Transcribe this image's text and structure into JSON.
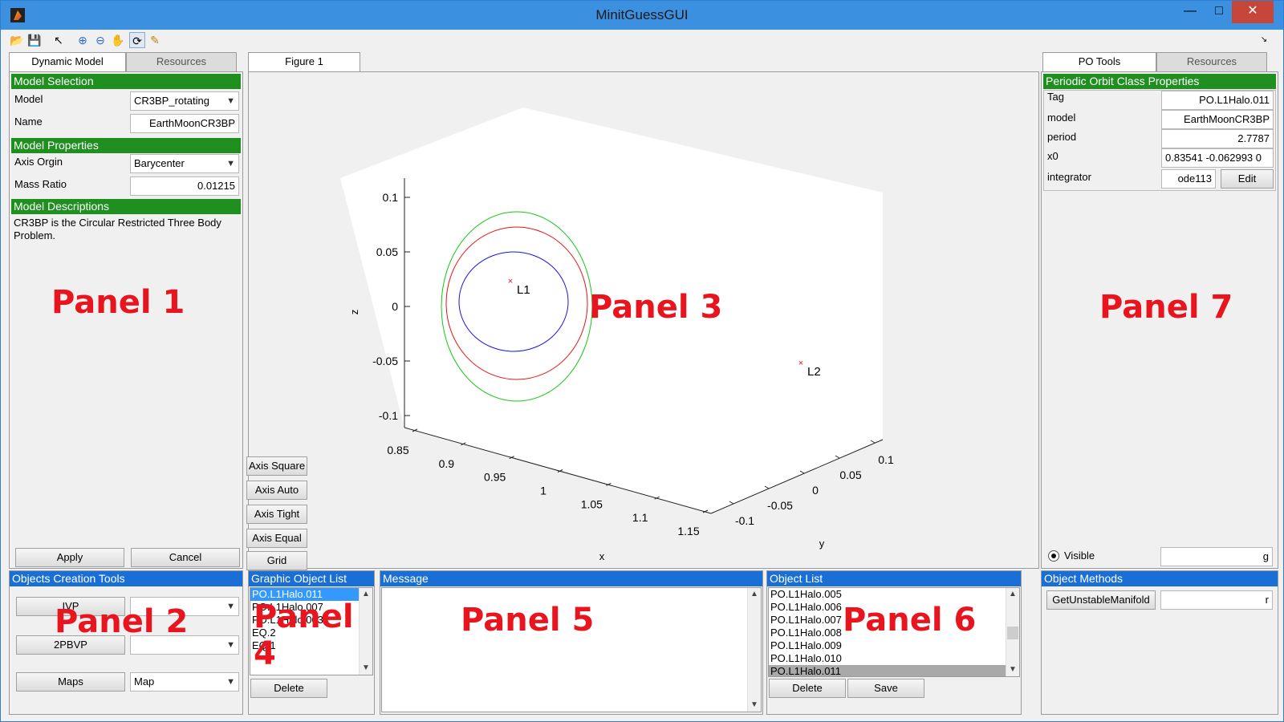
{
  "window": {
    "title": "MinitGuessGUI"
  },
  "tabs": {
    "left": [
      "Dynamic Model",
      "Resources"
    ],
    "middle": "Figure 1",
    "right": [
      "PO Tools",
      "Resources"
    ]
  },
  "panel1": {
    "model_selection_header": "Model Selection",
    "model_label": "Model",
    "model_value": "CR3BP_rotating",
    "name_label": "Name",
    "name_value": "EarthMoonCR3BP",
    "model_properties_header": "Model Properties",
    "axis_origin_label": "Axis Orgin",
    "axis_origin_value": "Barycenter",
    "mass_ratio_label": "Mass Ratio",
    "mass_ratio_value": "0.01215",
    "model_descriptions_header": "Model Descriptions",
    "description_line1": "CR3BP is the Circular Restricted Three Body",
    "description_line2": "Problem.",
    "apply": "Apply",
    "cancel": "Cancel",
    "overlay": "Panel 1"
  },
  "panel2": {
    "header": "Objects Creation Tools",
    "ivp": "IVP",
    "ivp_select": "",
    "twopbvp": "2PBVP",
    "twopbvp_select": "",
    "maps": "Maps",
    "maps_select": "Map",
    "overlay": "Panel 2"
  },
  "panel3": {
    "axis_buttons": [
      "Axis Square",
      "Axis Auto",
      "Axis Tight",
      "Axis Equal",
      "Grid"
    ],
    "overlay": "Panel 3"
  },
  "chart_data": {
    "type": "line",
    "title": "",
    "xlabel": "x",
    "ylabel": "y",
    "zlabel": "z",
    "x_ticks": [
      "0.85",
      "0.9",
      "0.95",
      "1",
      "1.05",
      "1.1",
      "1.15"
    ],
    "y_ticks": [
      "-0.1",
      "-0.05",
      "0",
      "0.05",
      "0.1"
    ],
    "z_ticks": [
      "0.1",
      "0.05",
      "0",
      "-0.05",
      "-0.1"
    ],
    "points": [
      {
        "label": "L1",
        "x": 0.8369,
        "y": 0,
        "z": 0
      },
      {
        "label": "L2",
        "x": 1.1557,
        "y": 0,
        "z": 0
      }
    ],
    "series": [
      {
        "color": "#1414e6"
      },
      {
        "color": "#e61414"
      },
      {
        "color": "#14c814"
      }
    ]
  },
  "panel4": {
    "header": "Graphic Object List",
    "items": [
      "PO.L1Halo.011",
      "PO.L1Halo.007",
      "PO.L1Halo.003",
      "EQ.2",
      "EQ.1"
    ],
    "delete": "Delete",
    "overlay": "Panel 4"
  },
  "panel5": {
    "header": "Message",
    "overlay": "Panel 5"
  },
  "panel6": {
    "header": "Object List",
    "items": [
      "PO.L1Halo.005",
      "PO.L1Halo.006",
      "PO.L1Halo.007",
      "PO.L1Halo.008",
      "PO.L1Halo.009",
      "PO.L1Halo.010",
      "PO.L1Halo.011"
    ],
    "delete": "Delete",
    "save": "Save",
    "overlay": "Panel 6"
  },
  "panel7": {
    "header": "Periodic Orbit Class Properties",
    "tag_label": "Tag",
    "tag_value": "PO.L1Halo.011",
    "model_label": "model",
    "model_value": "EarthMoonCR3BP",
    "period_label": "period",
    "period_value": "2.7787",
    "x0_label": "x0",
    "x0_value": "0.83541   -0.062993   0",
    "integrator_label": "integrator",
    "integrator_value": "ode113",
    "edit": "Edit",
    "visible_label": "Visible",
    "visible_value": "g",
    "overlay": "Panel 7"
  },
  "object_methods": {
    "header": "Object Methods",
    "method": "GetUnstableManifold",
    "method_field": "r"
  }
}
